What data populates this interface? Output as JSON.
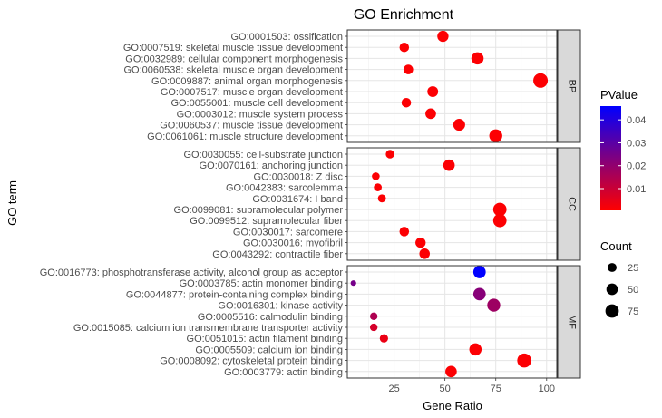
{
  "chart_data": {
    "type": "scatter",
    "title": "GO Enrichment",
    "xlabel": "Gene Ratio",
    "ylabel": "GO term",
    "xlim": [
      2,
      105
    ],
    "x_ticks": [
      25,
      50,
      75,
      100
    ],
    "grid": true,
    "legend_placement": "right",
    "facets": [
      {
        "name": "BP",
        "terms": [
          {
            "label": "GO:0001503: ossification",
            "x": 49,
            "count": 47,
            "pvalue": 0.001
          },
          {
            "label": "GO:0007519: skeletal muscle tissue development",
            "x": 30,
            "count": 30,
            "pvalue": 0.001
          },
          {
            "label": "GO:0032989: cellular component morphogenesis",
            "x": 66,
            "count": 60,
            "pvalue": 0.001
          },
          {
            "label": "GO:0060538: skeletal muscle organ development",
            "x": 32,
            "count": 31,
            "pvalue": 0.001
          },
          {
            "label": "GO:0009887: animal organ morphogenesis",
            "x": 97,
            "count": 92,
            "pvalue": 0.001
          },
          {
            "label": "GO:0007517: muscle organ development",
            "x": 44,
            "count": 42,
            "pvalue": 0.001
          },
          {
            "label": "GO:0055001: muscle cell development",
            "x": 31,
            "count": 30,
            "pvalue": 0.001
          },
          {
            "label": "GO:0003012: muscle system process",
            "x": 43,
            "count": 41,
            "pvalue": 0.001
          },
          {
            "label": "GO:0060537: muscle tissue development",
            "x": 57,
            "count": 55,
            "pvalue": 0.001
          },
          {
            "label": "GO:0061061: muscle structure development",
            "x": 75,
            "count": 70,
            "pvalue": 0.001
          }
        ]
      },
      {
        "name": "CC",
        "terms": [
          {
            "label": "GO:0030055: cell-substrate junction",
            "x": 23,
            "count": 22,
            "pvalue": 0.001
          },
          {
            "label": "GO:0070161: anchoring junction",
            "x": 52,
            "count": 50,
            "pvalue": 0.001
          },
          {
            "label": "GO:0030018: Z disc",
            "x": 16,
            "count": 16,
            "pvalue": 0.001
          },
          {
            "label": "GO:0042383: sarcolemma",
            "x": 17,
            "count": 17,
            "pvalue": 0.001
          },
          {
            "label": "GO:0031674: I band",
            "x": 19,
            "count": 18,
            "pvalue": 0.001
          },
          {
            "label": "GO:0099081: supramolecular polymer",
            "x": 77,
            "count": 75,
            "pvalue": 0.001
          },
          {
            "label": "GO:0099512: supramolecular fiber",
            "x": 77,
            "count": 75,
            "pvalue": 0.001
          },
          {
            "label": "GO:0030017: sarcomere",
            "x": 30,
            "count": 30,
            "pvalue": 0.001
          },
          {
            "label": "GO:0030016: myofibril",
            "x": 38,
            "count": 37,
            "pvalue": 0.001
          },
          {
            "label": "GO:0043292: contractile fiber",
            "x": 40,
            "count": 39,
            "pvalue": 0.001
          }
        ]
      },
      {
        "name": "MF",
        "terms": [
          {
            "label": "GO:0016773: phosphotransferase activity, alcohol group as acceptor",
            "x": 67,
            "count": 62,
            "pvalue": 0.046
          },
          {
            "label": "GO:0003785: actin monomer binding",
            "x": 5,
            "count": 5,
            "pvalue": 0.025
          },
          {
            "label": "GO:0044877: protein-containing complex binding",
            "x": 67,
            "count": 62,
            "pvalue": 0.022
          },
          {
            "label": "GO:0016301: kinase activity",
            "x": 74,
            "count": 70,
            "pvalue": 0.018
          },
          {
            "label": "GO:0005516: calmodulin binding",
            "x": 15,
            "count": 15,
            "pvalue": 0.015
          },
          {
            "label": "GO:0015085: calcium ion transmembrane transporter activity",
            "x": 15,
            "count": 15,
            "pvalue": 0.008
          },
          {
            "label": "GO:0051015: actin filament binding",
            "x": 20,
            "count": 20,
            "pvalue": 0.004
          },
          {
            "label": "GO:0005509: calcium ion binding",
            "x": 65,
            "count": 60,
            "pvalue": 0.001
          },
          {
            "label": "GO:0008092: cytoskeletal protein binding",
            "x": 89,
            "count": 85,
            "pvalue": 0.001
          },
          {
            "label": "GO:0003779: actin binding",
            "x": 53,
            "count": 50,
            "pvalue": 0.001
          }
        ]
      }
    ],
    "legend_pvalue": {
      "title": "PValue",
      "range": [
        0.0005,
        0.046
      ],
      "ticks": [
        0.01,
        0.02,
        0.03,
        0.04
      ],
      "tick_labels": [
        "0.01",
        "0.02",
        "0.03",
        "0.04"
      ],
      "color_low": "#ff0000",
      "color_high": "#0000ff"
    },
    "legend_count": {
      "title": "Count",
      "values": [
        25,
        50,
        75
      ],
      "labels": [
        "25",
        "50",
        "75"
      ]
    }
  }
}
